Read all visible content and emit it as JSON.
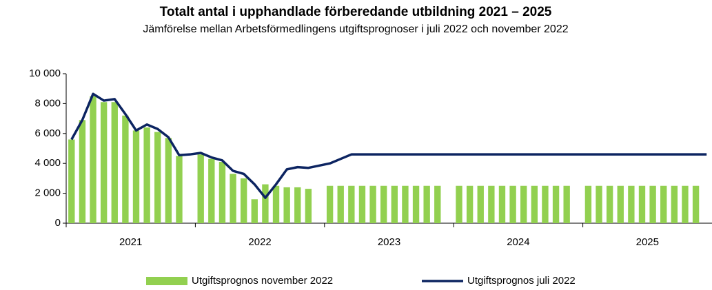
{
  "chart_data": {
    "type": "bar_line",
    "title": "Totalt antal i upphandlade förberedande utbildning 2021 – 2025",
    "subtitle": "Jämförelse mellan Arbetsförmedlingens utgiftsprognoser i juli 2022 och november 2022",
    "categories": [
      null,
      null,
      null,
      null,
      null,
      null,
      null,
      null,
      null,
      null,
      null,
      null,
      null,
      null,
      null,
      null,
      null,
      null,
      null,
      null,
      null,
      null,
      null,
      null,
      null,
      null,
      null,
      null,
      null,
      null,
      null,
      null,
      null,
      null,
      null,
      null,
      null,
      null,
      null,
      null,
      null,
      null,
      null,
      null,
      null,
      null,
      null,
      null,
      null,
      null,
      null,
      null,
      null,
      null,
      null,
      null,
      null,
      null,
      null,
      null
    ],
    "year_labels": [
      "2021",
      "2022",
      "2023",
      "2024",
      "2025"
    ],
    "ylim": [
      0,
      10000
    ],
    "yticks": [
      0,
      {
        "value": 2000,
        "label": "2 000"
      },
      {
        "value": 4000,
        "label": "4 000"
      },
      {
        "value": 6000,
        "label": "6 000"
      },
      {
        "value": 8000,
        "label": "8 000"
      },
      {
        "value": 10000,
        "label": "10 000"
      }
    ],
    "legend": "bottom",
    "series": [
      {
        "name": "Utgiftsprognos november 2022",
        "type": "bar",
        "color": "#92d050",
        "values": [
          5600,
          6900,
          8500,
          8100,
          8100,
          7200,
          6200,
          6400,
          6100,
          5700,
          4500,
          null,
          4600,
          4300,
          4100,
          3300,
          3000,
          1600,
          2600,
          2500,
          2400,
          2400,
          2300,
          null,
          2500,
          2500,
          2500,
          2500,
          2500,
          2500,
          2500,
          2500,
          2500,
          2500,
          2500,
          null,
          2500,
          2500,
          2500,
          2500,
          2500,
          2500,
          2500,
          2500,
          2500,
          2500,
          2500,
          null,
          2500,
          2500,
          2500,
          2500,
          2500,
          2500,
          2500,
          2500,
          2500,
          2500,
          2500,
          null
        ]
      },
      {
        "name": "Utgiftsprognos juli 2022",
        "type": "line",
        "color": "#0c2461",
        "values": [
          5600,
          6900,
          8650,
          8200,
          8300,
          7300,
          6200,
          6600,
          6300,
          5750,
          4550,
          4600,
          4700,
          4400,
          4200,
          3500,
          3300,
          2600,
          1700,
          2600,
          3600,
          3750,
          3700,
          3850,
          4000,
          4300,
          4600,
          4600,
          4600,
          4600,
          4600,
          4600,
          4600,
          4600,
          4600,
          4600,
          4600,
          4600,
          4600,
          4600,
          4600,
          4600,
          4600,
          4600,
          4600,
          4600,
          4600,
          4600,
          4600,
          4600,
          4600,
          4600,
          4600,
          4600,
          4600,
          4600,
          4600,
          4600,
          4600,
          4600
        ]
      }
    ]
  }
}
